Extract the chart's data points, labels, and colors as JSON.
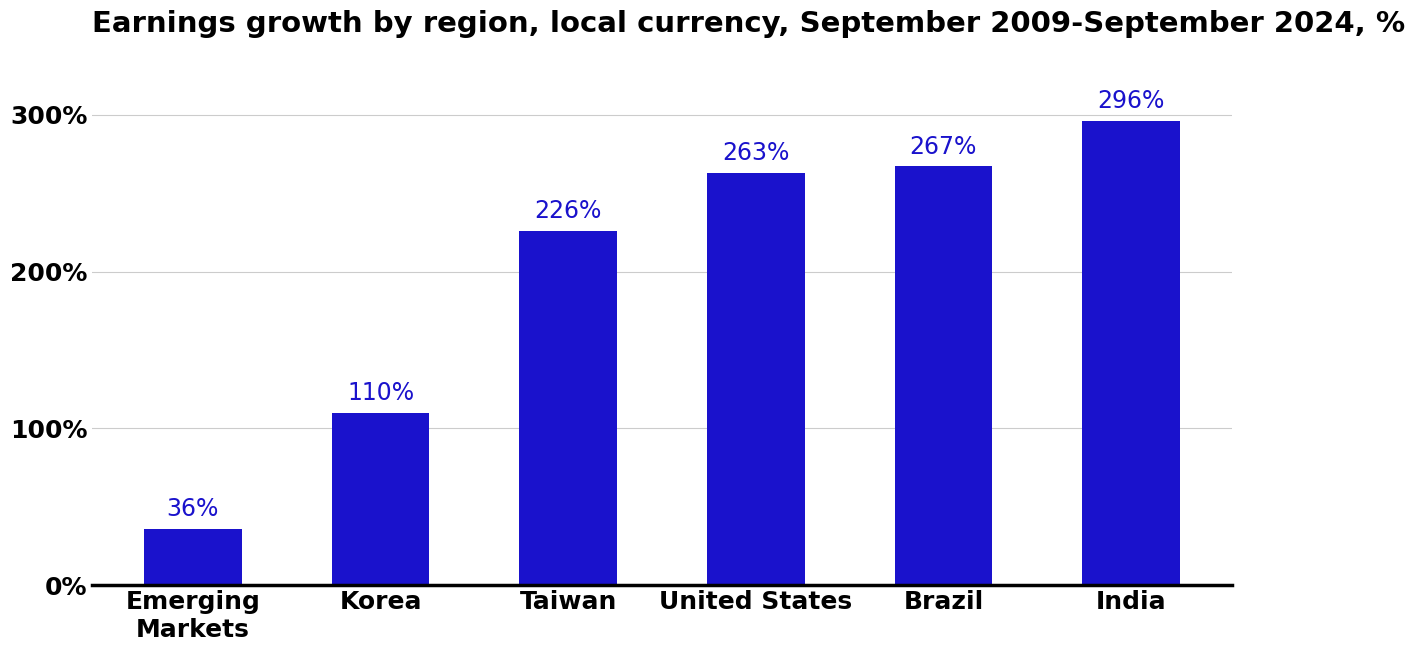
{
  "title": "Earnings growth by region, local currency, September 2009-September 2024, %",
  "categories": [
    "Emerging\nMarkets",
    "Korea",
    "Taiwan",
    "United States",
    "Brazil",
    "India"
  ],
  "values": [
    36,
    110,
    226,
    263,
    267,
    296
  ],
  "labels": [
    "36%",
    "110%",
    "226%",
    "263%",
    "267%",
    "296%"
  ],
  "bar_color": "#1A12CC",
  "background_color": "#FFFFFF",
  "ylim": [
    0,
    335
  ],
  "yticks": [
    0,
    100,
    200,
    300
  ],
  "ytick_labels": [
    "0%",
    "100%",
    "200%",
    "300%"
  ],
  "title_fontsize": 21,
  "tick_fontsize": 18,
  "bar_label_fontsize": 17,
  "label_color": "#1A12CC"
}
